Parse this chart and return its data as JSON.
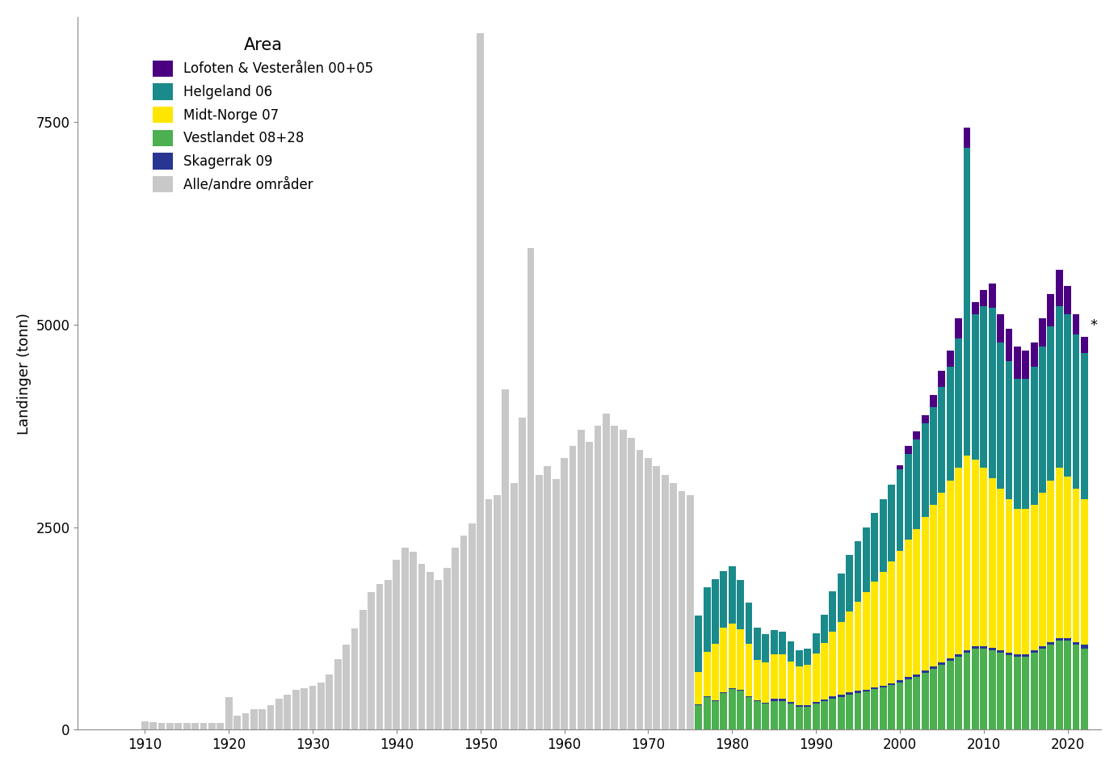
{
  "ylabel": "Landinger (tonn)",
  "xlabel": "",
  "colors": {
    "lofoten": "#4B0082",
    "helgeland": "#1B8A8A",
    "midt_norge": "#FFE600",
    "vestlandet": "#4CAF50",
    "skagerrak": "#283593",
    "alle_andre": "#C8C8C8"
  },
  "legend_title": "Area",
  "legend_labels": [
    "Lofoten & Vesterålen 00+05",
    "Helgeland 06",
    "Midt-Norge 07",
    "Vestlandet 08+28",
    "Skagerrak 09",
    "Alle/andre områder"
  ],
  "alle_andre_years": [
    1900,
    1901,
    1902,
    1903,
    1904,
    1905,
    1906,
    1907,
    1908,
    1909,
    1910,
    1911,
    1912,
    1913,
    1914,
    1915,
    1916,
    1917,
    1918,
    1919,
    1920,
    1921,
    1922,
    1923,
    1924,
    1925,
    1926,
    1927,
    1928,
    1929,
    1930,
    1931,
    1932,
    1933,
    1934,
    1935,
    1936,
    1937,
    1938,
    1939,
    1940,
    1941,
    1942,
    1943,
    1944,
    1945,
    1946,
    1947,
    1948,
    1949,
    1950,
    1951,
    1952,
    1953,
    1954,
    1955,
    1956,
    1957,
    1958,
    1959,
    1960,
    1961,
    1962,
    1963,
    1964,
    1965,
    1966,
    1967,
    1968,
    1969,
    1970,
    1971,
    1972,
    1973,
    1974,
    1975
  ],
  "alle_andre_vals": [
    0,
    0,
    0,
    0,
    0,
    0,
    0,
    0,
    0,
    0,
    100,
    95,
    85,
    80,
    80,
    80,
    80,
    80,
    80,
    80,
    400,
    170,
    200,
    250,
    250,
    300,
    380,
    430,
    490,
    510,
    540,
    580,
    680,
    870,
    1050,
    1250,
    1480,
    1700,
    1800,
    1850,
    2100,
    2250,
    2200,
    2050,
    1950,
    1850,
    2000,
    2250,
    2400,
    2550,
    8600,
    2850,
    2900,
    4200,
    3050,
    3850,
    5950,
    3150,
    3250,
    3100,
    3350,
    3500,
    3700,
    3550,
    3750,
    3900,
    3750,
    3700,
    3600,
    3450,
    3350,
    3250,
    3150,
    3050,
    2950,
    2900
  ],
  "stacked_years": [
    1976,
    1977,
    1978,
    1979,
    1980,
    1981,
    1982,
    1983,
    1984,
    1985,
    1986,
    1987,
    1988,
    1989,
    1990,
    1991,
    1992,
    1993,
    1994,
    1995,
    1996,
    1997,
    1998,
    1999,
    2000,
    2001,
    2002,
    2003,
    2004,
    2005,
    2006,
    2007,
    2008,
    2009,
    2010,
    2011,
    2012,
    2013,
    2014,
    2015,
    2016,
    2017,
    2018,
    2019,
    2020,
    2021,
    2022
  ],
  "vestlandet_vals": [
    300,
    400,
    350,
    450,
    500,
    480,
    400,
    350,
    320,
    350,
    350,
    320,
    280,
    280,
    320,
    350,
    380,
    400,
    430,
    450,
    470,
    500,
    520,
    550,
    580,
    620,
    650,
    700,
    750,
    800,
    850,
    900,
    950,
    1000,
    1000,
    980,
    950,
    920,
    900,
    900,
    950,
    1000,
    1050,
    1100,
    1100,
    1050,
    1000
  ],
  "skagerrak_vals": [
    10,
    10,
    10,
    10,
    15,
    15,
    15,
    10,
    10,
    30,
    30,
    25,
    20,
    20,
    20,
    20,
    30,
    30,
    30,
    30,
    25,
    25,
    25,
    25,
    30,
    30,
    30,
    30,
    30,
    30,
    30,
    30,
    30,
    30,
    30,
    30,
    30,
    30,
    30,
    30,
    30,
    30,
    30,
    30,
    30,
    30,
    50
  ],
  "midt_norge_vals": [
    400,
    550,
    700,
    800,
    800,
    750,
    650,
    500,
    500,
    550,
    550,
    500,
    480,
    500,
    600,
    700,
    800,
    900,
    1000,
    1100,
    1200,
    1300,
    1400,
    1500,
    1600,
    1700,
    1800,
    1900,
    2000,
    2100,
    2200,
    2300,
    2400,
    2300,
    2200,
    2100,
    2000,
    1900,
    1800,
    1800,
    1800,
    1900,
    2000,
    2100,
    2000,
    1900,
    1800
  ],
  "helgeland_vals": [
    700,
    800,
    800,
    700,
    700,
    600,
    500,
    400,
    350,
    300,
    280,
    250,
    200,
    200,
    250,
    350,
    500,
    600,
    700,
    750,
    800,
    850,
    900,
    950,
    1000,
    1050,
    1100,
    1150,
    1200,
    1300,
    1400,
    1600,
    3800,
    1800,
    2000,
    2100,
    1800,
    1700,
    1600,
    1600,
    1700,
    1800,
    1900,
    2000,
    2000,
    1900,
    1800
  ],
  "lofoten_vals": [
    0,
    0,
    0,
    0,
    0,
    0,
    0,
    0,
    0,
    0,
    0,
    0,
    0,
    0,
    0,
    0,
    0,
    0,
    0,
    0,
    0,
    0,
    0,
    0,
    50,
    100,
    100,
    100,
    150,
    200,
    200,
    250,
    250,
    150,
    200,
    300,
    350,
    400,
    400,
    350,
    300,
    350,
    400,
    450,
    350,
    250,
    200
  ],
  "ylim": [
    0,
    8800
  ],
  "yticks": [
    0,
    2500,
    5000,
    7500
  ],
  "xticks": [
    1910,
    1920,
    1930,
    1940,
    1950,
    1960,
    1970,
    1980,
    1990,
    2000,
    2010,
    2020
  ],
  "xlim": [
    1902,
    2024
  ],
  "bar_width": 0.85
}
